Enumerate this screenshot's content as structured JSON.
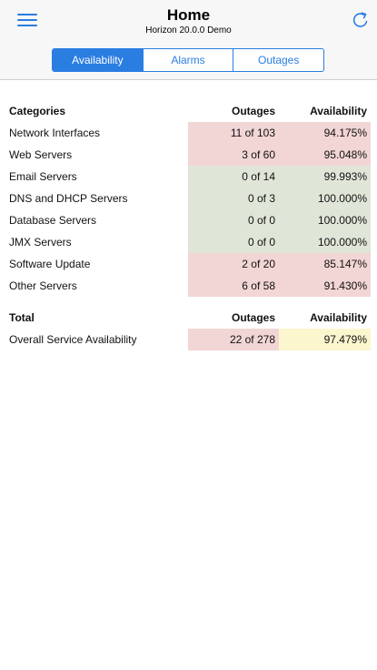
{
  "header": {
    "title": "Home",
    "subtitle": "Horizon 20.0.0 Demo",
    "menu_icon": "hamburger-menu-icon",
    "refresh_icon": "refresh-icon",
    "accent_color": "#2a7de1"
  },
  "tabs": [
    {
      "label": "Availability",
      "active": true
    },
    {
      "label": "Alarms",
      "active": false
    },
    {
      "label": "Outages",
      "active": false
    }
  ],
  "categories_table": {
    "headers": {
      "name": "Categories",
      "outages": "Outages",
      "availability": "Availability"
    },
    "rows": [
      {
        "name": "Network Interfaces",
        "outages": "11 of 103",
        "availability": "94.175%",
        "status": "red"
      },
      {
        "name": "Web Servers",
        "outages": "3 of 60",
        "availability": "95.048%",
        "status": "red"
      },
      {
        "name": "Email Servers",
        "outages": "0 of 14",
        "availability": "99.993%",
        "status": "green"
      },
      {
        "name": "DNS and DHCP Servers",
        "outages": "0 of 3",
        "availability": "100.000%",
        "status": "green"
      },
      {
        "name": "Database Servers",
        "outages": "0 of 0",
        "availability": "100.000%",
        "status": "green"
      },
      {
        "name": "JMX Servers",
        "outages": "0 of 0",
        "availability": "100.000%",
        "status": "green"
      },
      {
        "name": "Software Update",
        "outages": "2 of 20",
        "availability": "85.147%",
        "status": "red"
      },
      {
        "name": "Other Servers",
        "outages": "6 of 58",
        "availability": "91.430%",
        "status": "red"
      }
    ]
  },
  "total_table": {
    "headers": {
      "name": "Total",
      "outages": "Outages",
      "availability": "Availability"
    },
    "row": {
      "name": "Overall Service Availability",
      "outages": "22 of 278",
      "availability": "97.479%",
      "outages_status": "red",
      "availability_status": "yellow"
    }
  },
  "status_colors": {
    "red": "#f2d5d5",
    "green": "#dfe6d8",
    "yellow": "#fcf6cf"
  }
}
